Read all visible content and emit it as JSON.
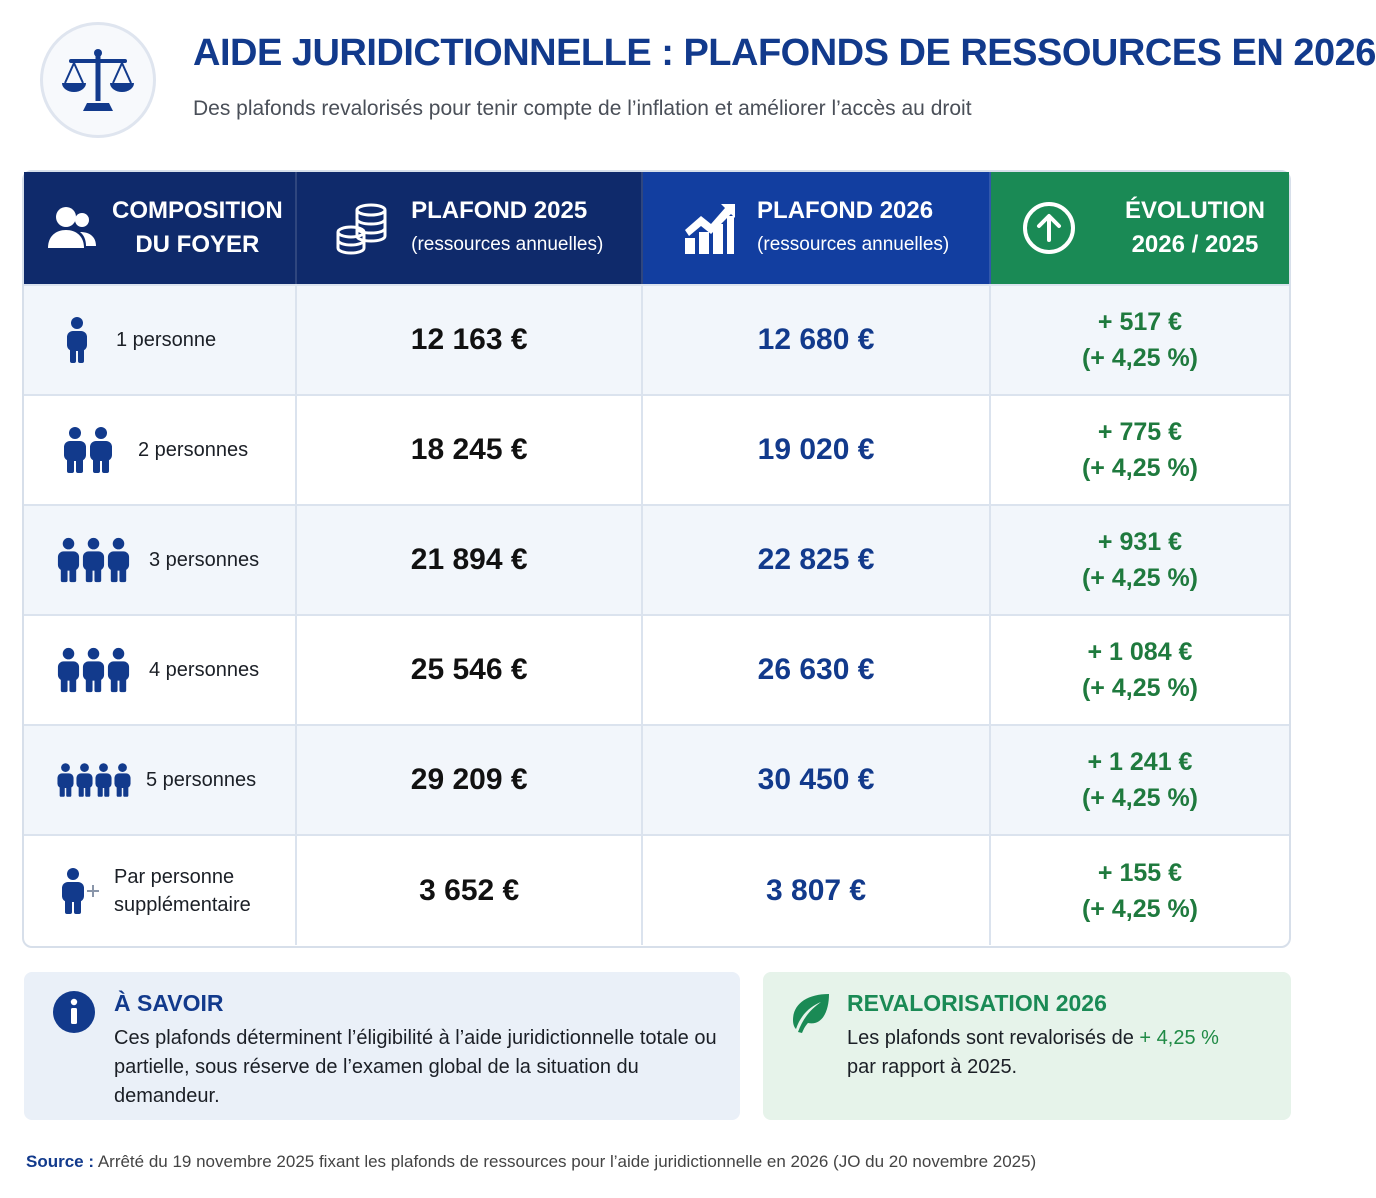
{
  "header": {
    "title": "AIDE JURIDICTIONNELLE : PLAFONDS DE RESSOURCES EN 2026",
    "subtitle": "Des plafonds revalorisés pour tenir compte de l’inflation et améliorer l’accès au droit",
    "logo_icon": "balance-scale-icon"
  },
  "table": {
    "columns": [
      {
        "line1": "COMPOSITION",
        "line2": "DU FOYER",
        "icon": "users-icon"
      },
      {
        "line1": "PLAFOND 2025",
        "line2": "(ressources annuelles)",
        "icon": "coins-icon"
      },
      {
        "line1": "PLAFOND 2026",
        "line2": "(ressources annuelles)",
        "icon": "growth-chart-icon"
      },
      {
        "line1": "ÉVOLUTION",
        "line2": "2026 / 2025",
        "icon": "arrow-up-circle-icon"
      }
    ],
    "rows": [
      {
        "label": "1 personne",
        "label2": "",
        "p2025": "12 163 €",
        "p2026": "12 680 €",
        "delta": "+ 517 €",
        "pct": "(+ 4,25 %)"
      },
      {
        "label": "2 personnes",
        "label2": "",
        "p2025": "18 245 €",
        "p2026": "19 020 €",
        "delta": "+ 775 €",
        "pct": "(+ 4,25 %)"
      },
      {
        "label": "3 personnes",
        "label2": "",
        "p2025": "21 894 €",
        "p2026": "22 825 €",
        "delta": "+ 931 €",
        "pct": "(+ 4,25 %)"
      },
      {
        "label": "4 personnes",
        "label2": "",
        "p2025": "25 546 €",
        "p2026": "26 630 €",
        "delta": "+ 1 084 €",
        "pct": "(+ 4,25 %)"
      },
      {
        "label": "5 personnes",
        "label2": "",
        "p2025": "29 209 €",
        "p2026": "30 450 €",
        "delta": "+ 1 241 €",
        "pct": "(+ 4,25 %)"
      },
      {
        "label": "Par personne",
        "label2": "supplémentaire",
        "p2025": "3 652 €",
        "p2026": "3 807 €",
        "delta": "+ 155 €",
        "pct": "(+ 4,25 %)"
      }
    ]
  },
  "info_box": {
    "title": "À SAVOIR",
    "text": "Ces plafonds déterminent l’éligibilité à l’aide juridictionnelle totale ou partielle, sous réserve de l’examen global de la situation du demandeur.",
    "icon": "info-icon"
  },
  "reval_box": {
    "title": "REVALORISATION 2026",
    "text_before": "Les plafonds sont revalorisés de ",
    "highlight": "+ 4,25 %",
    "text_after": "par rapport à 2025.",
    "icon": "leaf-icon"
  },
  "source": {
    "label": "Source :",
    "text": " Arrêté du 19 novembre 2025 fixant les plafonds de ressources pour l’aide juridictionnelle en 2026 (JO du 20 novembre 2025)"
  },
  "colors": {
    "navy": "#0f2a6b",
    "blue": "#123ea0",
    "green": "#1a8a55",
    "row_alt": "#f2f6fb"
  }
}
